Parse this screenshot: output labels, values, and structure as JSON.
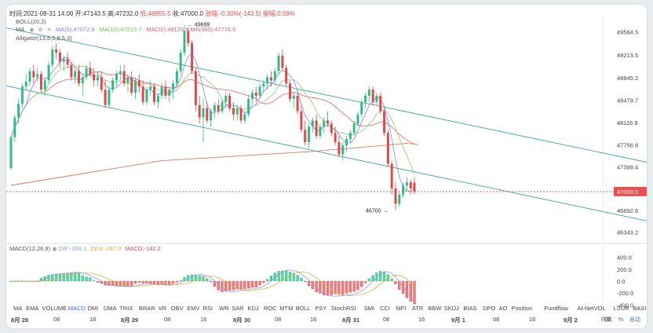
{
  "header": {
    "time_label": "时间:2021-08-31 14:00",
    "open_label": "开:47143.5",
    "high_label": "高:47232.0",
    "low_label": "低:46955.5",
    "close_label": "收:47000.0",
    "change_label": "涨幅:-0.30%(-143.5)",
    "amp_label": "振幅:0.59%"
  },
  "indicators": {
    "boll": "BOLL(20,2)",
    "ma": "MA",
    "ma5": "MA(5):47072.9",
    "ma10": "MA(10):47215.7",
    "ma20": "MA(20):48125.4",
    "ma360": "MA(360):47774.5",
    "alligator": "Alligator(13,8,5,8,5,3)"
  },
  "macd_legend": {
    "name": "MACD(12,26,9)",
    "dif": "DIF:-358.1",
    "dea": "DEA:-287.0",
    "macd": "MACD:-142.2"
  },
  "price_axis": [
    "49584.5",
    "49213.5",
    "48845.2",
    "48479.7",
    "48116.9",
    "47756.8",
    "47399.4",
    "47000.0",
    "46692.6",
    "46343.2"
  ],
  "macd_axis": [
    "400.0",
    "200.0",
    "0.0",
    "-200.0",
    "-400.0"
  ],
  "annotations": {
    "high": "49699",
    "low": "46700"
  },
  "tabs": [
    "MA",
    "EMA",
    "VOLUME",
    "MACD",
    "DMI",
    "DMA",
    "TRIX",
    "BRAR",
    "VR",
    "OBV",
    "EMV",
    "RSI",
    "WR",
    "SAR",
    "KDJ",
    "ROC",
    "MTM",
    "BOLL",
    "PSY",
    "StochRSI",
    "SMI",
    "CCI",
    "MFI",
    "ATR",
    "BBW",
    "SKDJ",
    "BIAS",
    "DPO",
    "AO",
    "Position",
    "Fundflow",
    "AI-NetVOL",
    "LSUR",
    "BASIS"
  ],
  "active_tab": "MACD",
  "date_labels": [
    "8月 28",
    "08",
    "16",
    "8月 29",
    "08",
    "16",
    "8月 30",
    "08",
    "16",
    "8月 31",
    "08",
    "16",
    "9月 1",
    "08",
    "16",
    "9月 2",
    "08"
  ],
  "footer": {
    "mode": "时数",
    "pct": "%",
    "auto": "自动"
  },
  "colors": {
    "up": "#2dbd85",
    "down": "#e04848",
    "current": "#ea5050",
    "channel": "#3aa5a5",
    "ma5": "#8a7fe0",
    "ma10": "#8ccc6a",
    "ma20": "#e06078",
    "ma360": "#d87c5a"
  },
  "chart_data": {
    "type": "candlestick",
    "interval": "1h",
    "current_price": 47000.0,
    "ylim": [
      46160,
      49770
    ],
    "ohlc_hourly_approx": [
      [
        47380,
        47900,
        47350,
        47880
      ],
      [
        47880,
        48250,
        47800,
        48200
      ],
      [
        48200,
        48500,
        48100,
        48420
      ],
      [
        48420,
        48750,
        48350,
        48700
      ],
      [
        48700,
        48900,
        48650,
        48780
      ],
      [
        48780,
        49000,
        48700,
        48950
      ],
      [
        48950,
        49050,
        48750,
        48850
      ],
      [
        48850,
        49000,
        48780,
        48900
      ],
      [
        48900,
        48950,
        48600,
        48650
      ],
      [
        48650,
        48850,
        48550,
        48800
      ],
      [
        48800,
        49100,
        48750,
        49050
      ],
      [
        49050,
        49350,
        49000,
        49300
      ],
      [
        49300,
        49400,
        49150,
        49250
      ],
      [
        49250,
        49300,
        49000,
        49100
      ],
      [
        49100,
        49200,
        48950,
        49150
      ],
      [
        49150,
        49250,
        49000,
        49050
      ],
      [
        49050,
        49100,
        48800,
        48850
      ],
      [
        48850,
        49000,
        48750,
        48950
      ],
      [
        48950,
        49050,
        48700,
        48750
      ],
      [
        48750,
        48900,
        48550,
        48850
      ],
      [
        48850,
        49050,
        48800,
        49000
      ],
      [
        49000,
        49100,
        48850,
        48900
      ],
      [
        48900,
        49000,
        48700,
        48800
      ],
      [
        48800,
        48950,
        48700,
        48850
      ],
      [
        48850,
        48950,
        48600,
        48650
      ],
      [
        48650,
        48800,
        48350,
        48400
      ],
      [
        48400,
        48700,
        48350,
        48650
      ],
      [
        48650,
        48850,
        48600,
        48800
      ],
      [
        48800,
        48950,
        48700,
        48900
      ],
      [
        48900,
        49050,
        48800,
        48950
      ],
      [
        48950,
        49050,
        48700,
        48750
      ],
      [
        48750,
        48900,
        48600,
        48850
      ],
      [
        48850,
        48950,
        48550,
        48600
      ],
      [
        48600,
        48850,
        48500,
        48800
      ],
      [
        48800,
        48900,
        48600,
        48700
      ],
      [
        48700,
        48800,
        48400,
        48450
      ],
      [
        48450,
        48700,
        48400,
        48650
      ],
      [
        48650,
        48800,
        48550,
        48700
      ],
      [
        48700,
        48750,
        48400,
        48450
      ],
      [
        48450,
        48600,
        48350,
        48550
      ],
      [
        48550,
        48750,
        48500,
        48700
      ],
      [
        48700,
        48800,
        48500,
        48550
      ],
      [
        48550,
        48700,
        48450,
        48650
      ],
      [
        48650,
        48800,
        48500,
        48750
      ],
      [
        48750,
        49000,
        48700,
        48950
      ],
      [
        48950,
        49300,
        48900,
        49250
      ],
      [
        49250,
        49699,
        49200,
        49600
      ],
      [
        49600,
        49650,
        49350,
        49400
      ],
      [
        49400,
        49450,
        48900,
        48950
      ],
      [
        48950,
        49000,
        48300,
        48400
      ],
      [
        48400,
        48550,
        48100,
        48200
      ],
      [
        48200,
        48500,
        47800,
        48350
      ],
      [
        48350,
        48450,
        48100,
        48150
      ],
      [
        48150,
        48350,
        48050,
        48300
      ],
      [
        48300,
        48450,
        48200,
        48400
      ],
      [
        48400,
        48500,
        48250,
        48300
      ],
      [
        48300,
        48500,
        48250,
        48450
      ],
      [
        48450,
        48600,
        48350,
        48550
      ],
      [
        48550,
        48600,
        48300,
        48350
      ],
      [
        48350,
        48450,
        48150,
        48250
      ],
      [
        48250,
        48400,
        48150,
        48350
      ],
      [
        48350,
        48400,
        48100,
        48150
      ],
      [
        48150,
        48300,
        48100,
        48250
      ],
      [
        48250,
        48550,
        48200,
        48500
      ],
      [
        48500,
        48650,
        48400,
        48600
      ],
      [
        48600,
        48700,
        48450,
        48550
      ],
      [
        48550,
        48750,
        48500,
        48700
      ],
      [
        48700,
        48800,
        48600,
        48750
      ],
      [
        48750,
        48900,
        48650,
        48850
      ],
      [
        48850,
        48950,
        48700,
        48800
      ],
      [
        48800,
        49000,
        48750,
        48950
      ],
      [
        48950,
        49250,
        48900,
        49200
      ],
      [
        49200,
        49300,
        48950,
        49000
      ],
      [
        49000,
        49050,
        48700,
        48750
      ],
      [
        48750,
        48800,
        48450,
        48500
      ],
      [
        48500,
        48600,
        48350,
        48550
      ],
      [
        48550,
        48600,
        48250,
        48300
      ],
      [
        48300,
        48400,
        47950,
        48000
      ],
      [
        48000,
        48150,
        47750,
        47800
      ],
      [
        47800,
        48100,
        47700,
        48050
      ],
      [
        48050,
        48200,
        47950,
        48150
      ],
      [
        48150,
        48250,
        47850,
        47900
      ],
      [
        47900,
        48100,
        47850,
        48050
      ],
      [
        48050,
        48200,
        47950,
        48150
      ],
      [
        48150,
        48300,
        48050,
        48100
      ],
      [
        48100,
        48150,
        47900,
        47950
      ],
      [
        47950,
        48050,
        47750,
        47800
      ],
      [
        47800,
        47900,
        47550,
        47600
      ],
      [
        47600,
        47800,
        47500,
        47750
      ],
      [
        47750,
        47900,
        47650,
        47850
      ],
      [
        47850,
        48000,
        47800,
        47950
      ],
      [
        47950,
        48150,
        47900,
        48100
      ],
      [
        48100,
        48300,
        48050,
        48250
      ],
      [
        48250,
        48500,
        48200,
        48450
      ],
      [
        48450,
        48600,
        48350,
        48550
      ],
      [
        48550,
        48700,
        48450,
        48650
      ],
      [
        48650,
        48700,
        48400,
        48450
      ],
      [
        48450,
        48600,
        48400,
        48550
      ],
      [
        48550,
        48600,
        48250,
        48300
      ],
      [
        48300,
        48350,
        47900,
        47950
      ],
      [
        47950,
        48000,
        47400,
        47450
      ],
      [
        47450,
        47500,
        46950,
        47050
      ],
      [
        47050,
        47150,
        46700,
        46800
      ],
      [
        46800,
        47000,
        46750,
        46950
      ],
      [
        46950,
        47150,
        46900,
        47100
      ],
      [
        47100,
        47232,
        47000,
        47150
      ],
      [
        47150,
        47200,
        46950,
        47050
      ],
      [
        47143.5,
        47232.0,
        46955.5,
        47000.0
      ]
    ],
    "annotations": {
      "high": 49699,
      "low": 46700
    }
  }
}
